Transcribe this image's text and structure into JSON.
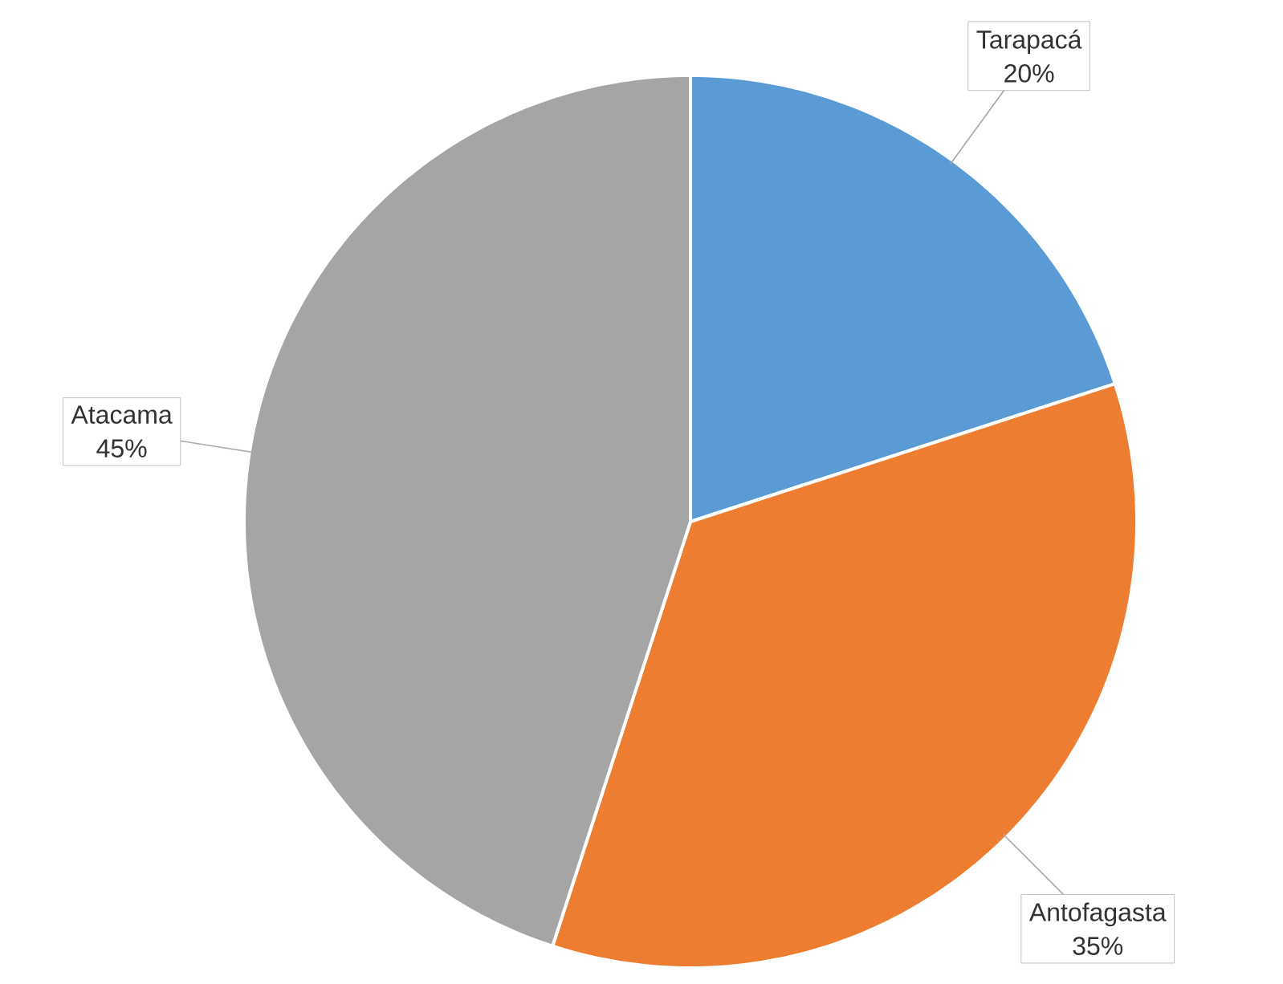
{
  "chart_data": {
    "type": "pie",
    "categories": [
      "Tarapacá",
      "Antofagasta",
      "Atacama"
    ],
    "values": [
      20,
      35,
      45
    ],
    "value_labels": [
      "20%",
      "35%",
      "45%"
    ],
    "colors": [
      "#5b9bd5",
      "#ed7d31",
      "#a5a5a5"
    ]
  }
}
